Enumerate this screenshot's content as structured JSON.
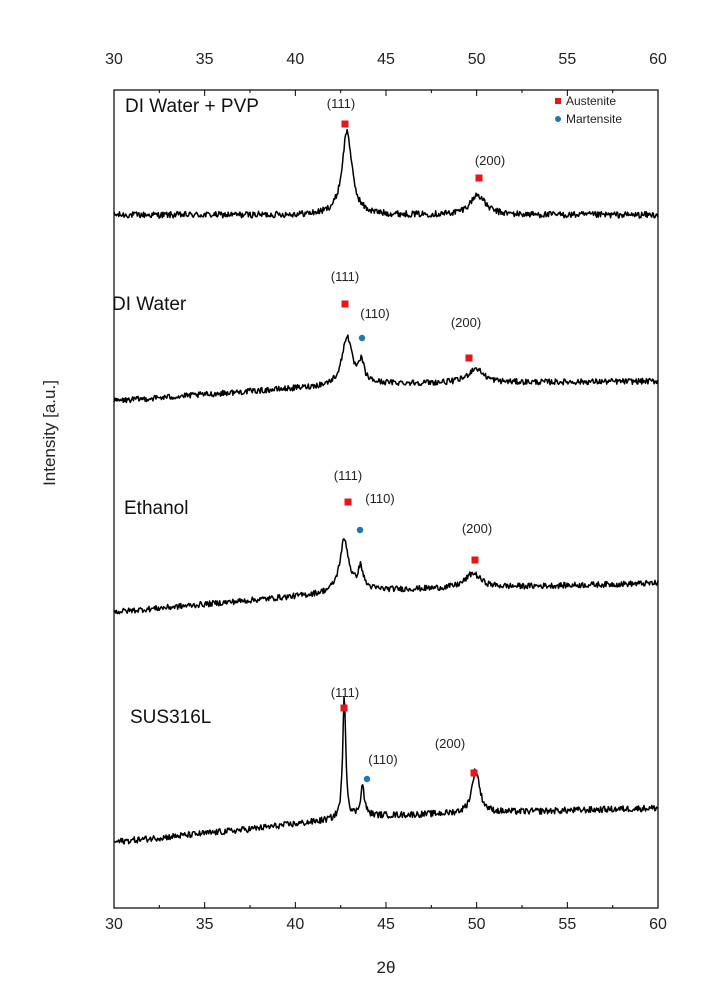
{
  "chart_data": {
    "type": "line",
    "title": "",
    "xlabel": "2θ",
    "ylabel": "Intensity [a.u.]",
    "xlim": [
      30,
      60
    ],
    "xticks": [
      30,
      35,
      40,
      45,
      50,
      55,
      60
    ],
    "grid": false,
    "legend": {
      "position": "top-right",
      "entries": [
        {
          "name": "Austenite",
          "marker": "square",
          "color": "#e8161a"
        },
        {
          "name": "Martensite",
          "marker": "circle",
          "color": "#1f77b4"
        }
      ]
    },
    "series": [
      {
        "name": "DI Water + PVP",
        "baseline": [
          [
            30,
            0.0
          ],
          [
            60,
            0.0
          ]
        ],
        "peaks": [
          {
            "x": 42.85,
            "height": 2.1,
            "width": 0.32
          },
          {
            "x": 50.05,
            "height": 0.5,
            "width": 0.5
          }
        ],
        "annotations": [
          {
            "text": "(111)",
            "x": 42.8,
            "phase": "Austenite"
          },
          {
            "text": "(200)",
            "x": 50.1,
            "phase": "Austenite"
          }
        ]
      },
      {
        "name": "DI Water",
        "baseline": [
          [
            30,
            0.0
          ],
          [
            37,
            0.25
          ],
          [
            44,
            0.48
          ],
          [
            60,
            0.55
          ]
        ],
        "peaks": [
          {
            "x": 42.85,
            "height": 1.35,
            "width": 0.32
          },
          {
            "x": 43.65,
            "height": 0.55,
            "width": 0.17
          },
          {
            "x": 49.95,
            "height": 0.4,
            "width": 0.5
          }
        ],
        "annotations": [
          {
            "text": "(111)",
            "x": 42.8,
            "phase": "Austenite"
          },
          {
            "text": "(110)",
            "x": 43.8,
            "phase": "Martensite"
          },
          {
            "text": "(200)",
            "x": 49.6,
            "phase": "Austenite"
          }
        ]
      },
      {
        "name": "Ethanol",
        "baseline": [
          [
            30,
            0.0
          ],
          [
            37,
            0.3
          ],
          [
            44,
            0.6
          ],
          [
            60,
            0.8
          ]
        ],
        "peaks": [
          {
            "x": 42.7,
            "height": 1.45,
            "width": 0.3
          },
          {
            "x": 43.6,
            "height": 0.6,
            "width": 0.17
          },
          {
            "x": 49.8,
            "height": 0.4,
            "width": 0.5
          }
        ],
        "annotations": [
          {
            "text": "(111)",
            "x": 42.9,
            "phase": "Austenite"
          },
          {
            "text": "(110)",
            "x": 43.7,
            "phase": "Martensite"
          },
          {
            "text": "(200)",
            "x": 49.9,
            "phase": "Austenite"
          }
        ]
      },
      {
        "name": "SUS316L",
        "baseline": [
          [
            30,
            0.0
          ],
          [
            37,
            0.3
          ],
          [
            44,
            0.65
          ],
          [
            60,
            0.85
          ]
        ],
        "peaks": [
          {
            "x": 42.7,
            "height": 3.1,
            "width": 0.1
          },
          {
            "x": 43.7,
            "height": 0.75,
            "width": 0.13
          },
          {
            "x": 49.95,
            "height": 1.1,
            "width": 0.25
          }
        ],
        "annotations": [
          {
            "text": "(111)",
            "x": 42.7,
            "phase": "Austenite"
          },
          {
            "text": "(110)",
            "x": 43.9,
            "phase": "Martensite"
          },
          {
            "text": "(200)",
            "x": 49.9,
            "phase": "Austenite"
          }
        ]
      }
    ]
  }
}
